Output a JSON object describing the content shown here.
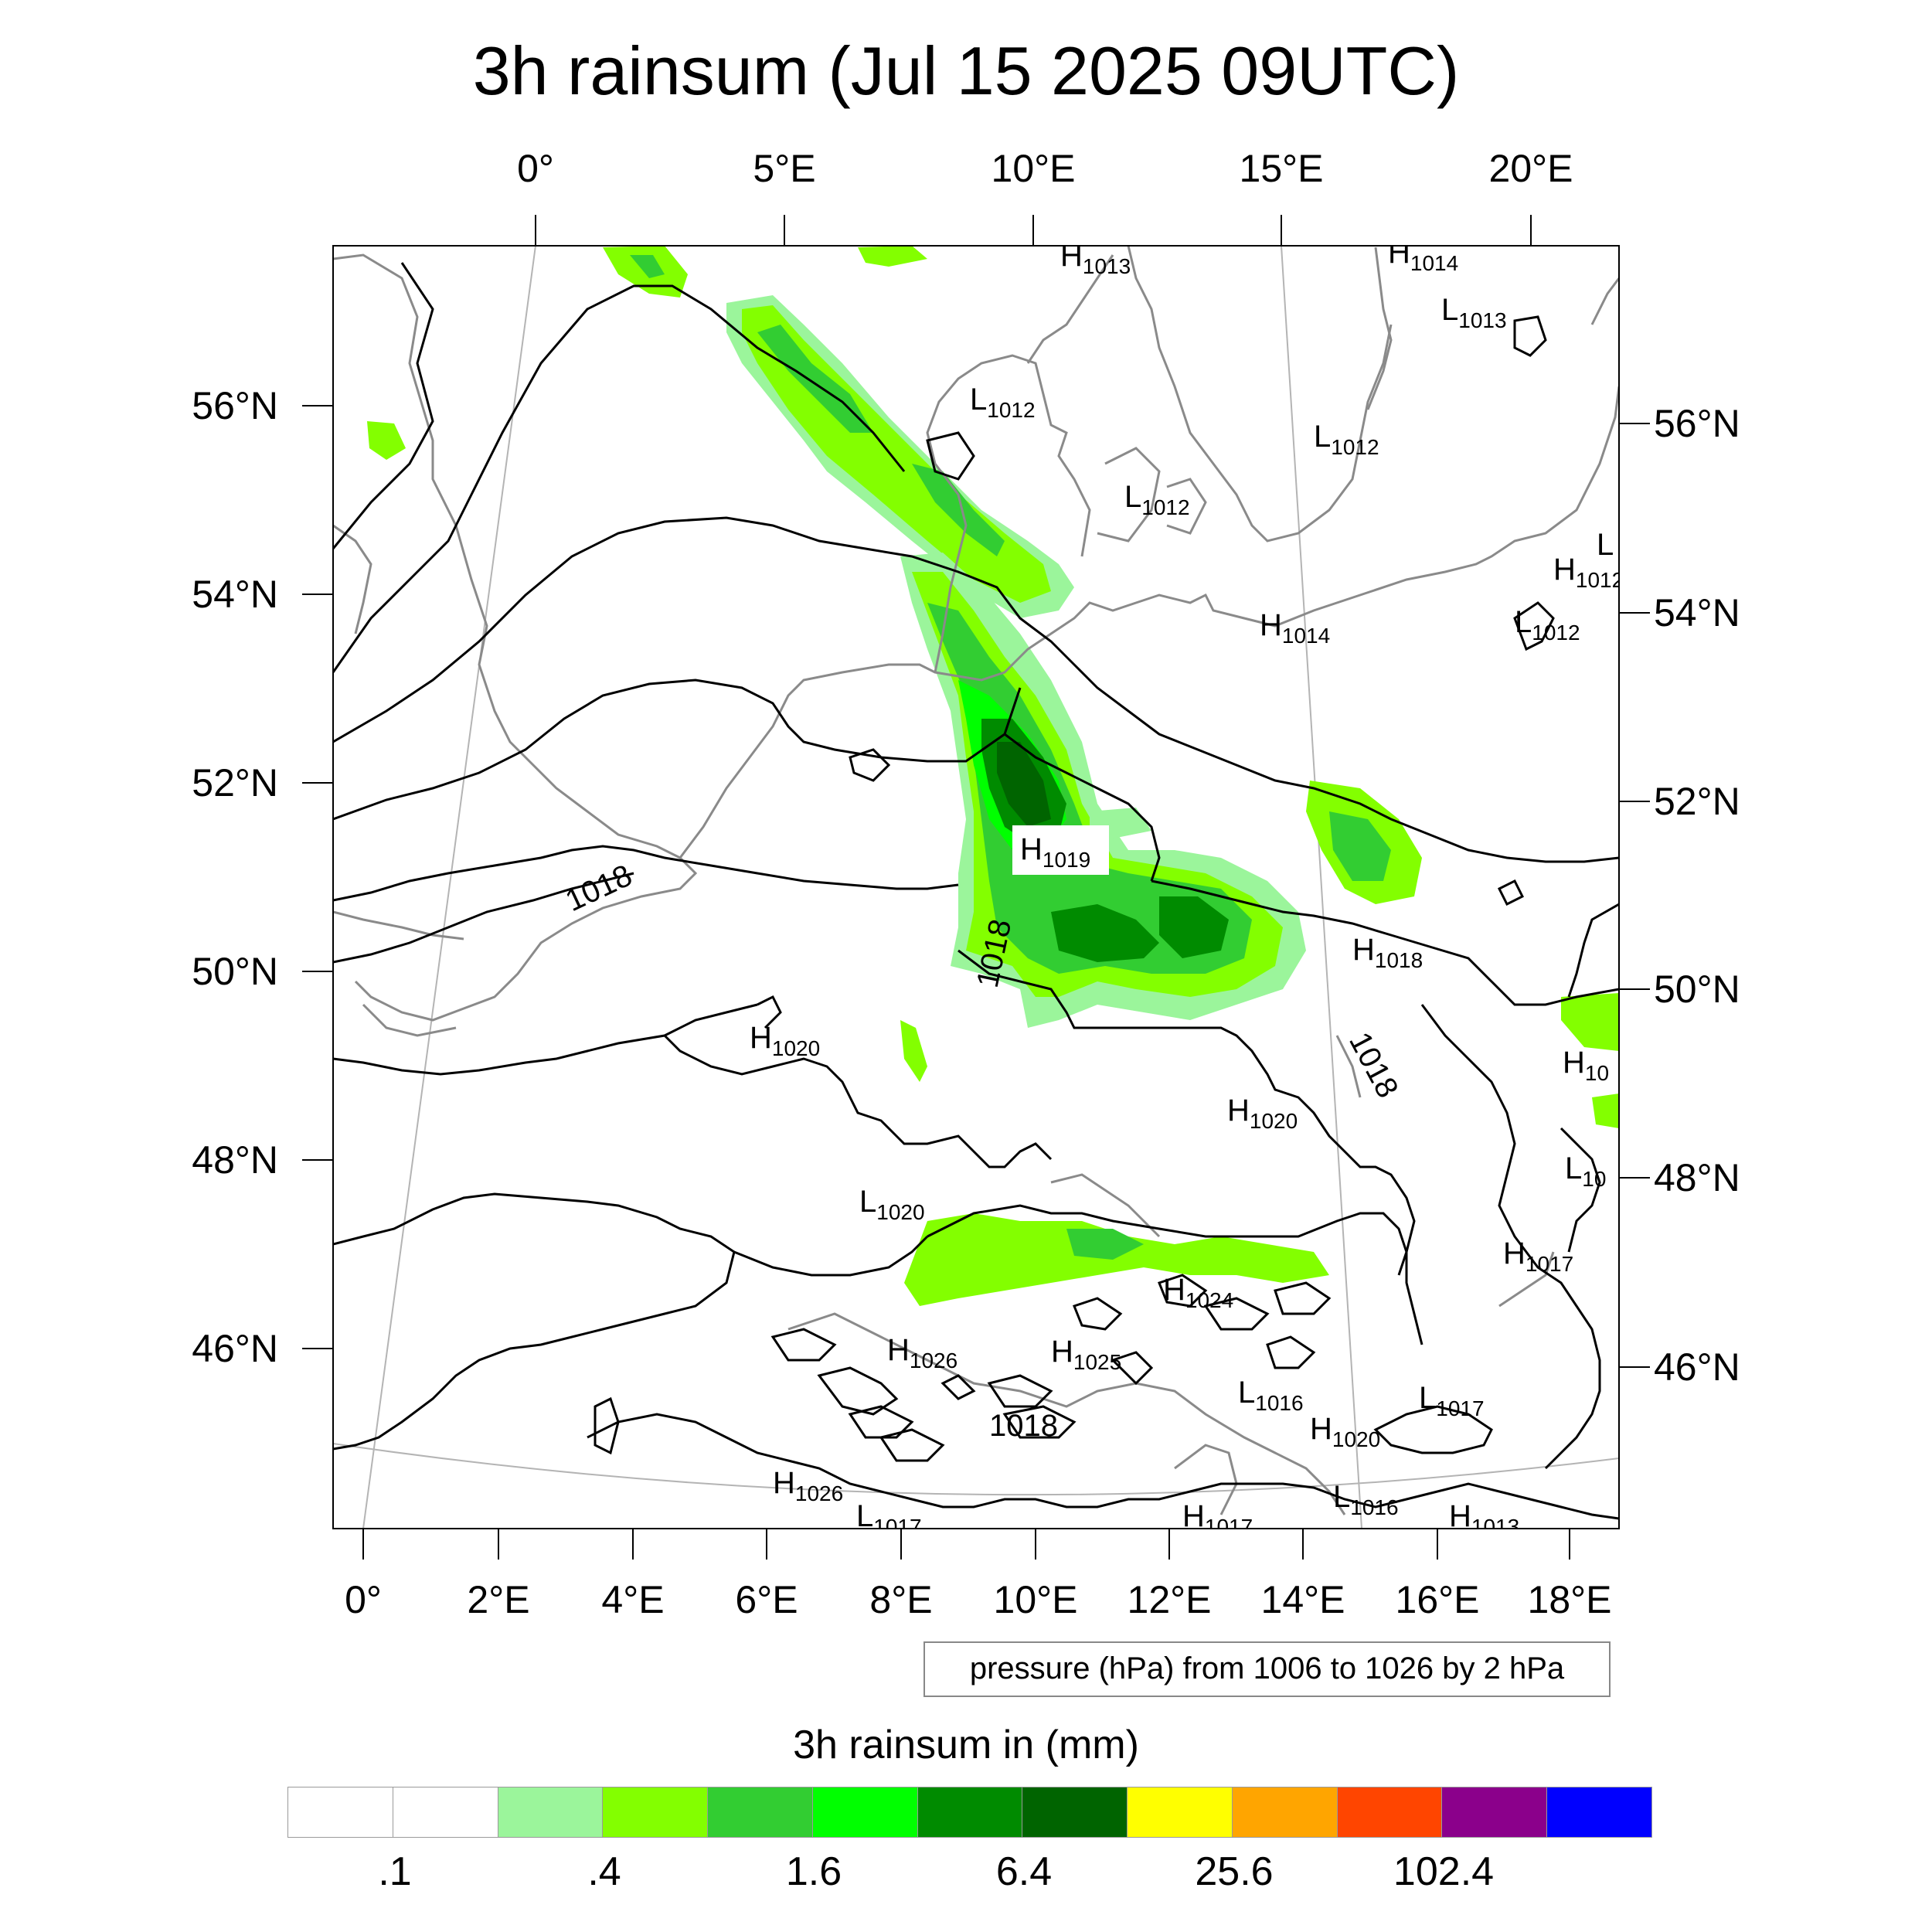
{
  "title": "3h rainsum (Jul 15 2025 09UTC)",
  "top_ticks": [
    "0°",
    "5°E",
    "10°E",
    "15°E",
    "20°E"
  ],
  "bottom_ticks": [
    "0°",
    "2°E",
    "4°E",
    "6°E",
    "8°E",
    "10°E",
    "12°E",
    "14°E",
    "16°E",
    "18°E"
  ],
  "left_ticks": [
    "56°N",
    "54°N",
    "52°N",
    "50°N",
    "48°N",
    "46°N"
  ],
  "right_ticks": [
    "56°N",
    "54°N",
    "52°N",
    "50°N",
    "48°N",
    "46°N"
  ],
  "contour_note": "pressure (hPa) from 1006 to 1026 by 2 hPa",
  "colorbar": {
    "title": "3h rainsum in (mm)",
    "labels": [
      ".1",
      ".4",
      "1.6",
      "6.4",
      "25.6",
      "102.4"
    ],
    "colors": [
      "#ffffff",
      "#ffffff",
      "#9bf59b",
      "#83ff00",
      "#32cd32",
      "#00ff00",
      "#008b00",
      "#006400",
      "#ffff00",
      "#ffa500",
      "#ff4500",
      "#8b008b",
      "#0000ff"
    ]
  },
  "pressure_labels": {
    "highs": [
      {
        "letter": "H",
        "value": "1013"
      },
      {
        "letter": "H",
        "value": "1014"
      },
      {
        "letter": "H",
        "value": "1014"
      },
      {
        "letter": "H",
        "value": "1012"
      },
      {
        "letter": "H",
        "value": "1019"
      },
      {
        "letter": "H",
        "value": "1018"
      },
      {
        "letter": "H",
        "value": "1020"
      },
      {
        "letter": "H",
        "value": "1020"
      },
      {
        "letter": "H",
        "value": "10"
      },
      {
        "letter": "H",
        "value": "1017"
      },
      {
        "letter": "H",
        "value": "1024"
      },
      {
        "letter": "H",
        "value": "1026"
      },
      {
        "letter": "H",
        "value": "1025"
      },
      {
        "letter": "H",
        "value": "1020"
      },
      {
        "letter": "H",
        "value": "1026"
      },
      {
        "letter": "H",
        "value": "1017"
      },
      {
        "letter": "H",
        "value": "1013"
      }
    ],
    "lows": [
      {
        "letter": "L",
        "value": "1013"
      },
      {
        "letter": "L",
        "value": "1012"
      },
      {
        "letter": "L",
        "value": "1012"
      },
      {
        "letter": "L",
        "value": "1012"
      },
      {
        "letter": "L",
        "value": ""
      },
      {
        "letter": "L",
        "value": "1012"
      },
      {
        "letter": "L",
        "value": "1020"
      },
      {
        "letter": "L",
        "value": "10"
      },
      {
        "letter": "L",
        "value": "1016"
      },
      {
        "letter": "L",
        "value": "1017"
      },
      {
        "letter": "L",
        "value": "1016"
      },
      {
        "letter": "L",
        "value": "1017"
      }
    ],
    "isobar_labels": [
      "1018",
      "1018",
      "1018",
      "1018"
    ]
  }
}
